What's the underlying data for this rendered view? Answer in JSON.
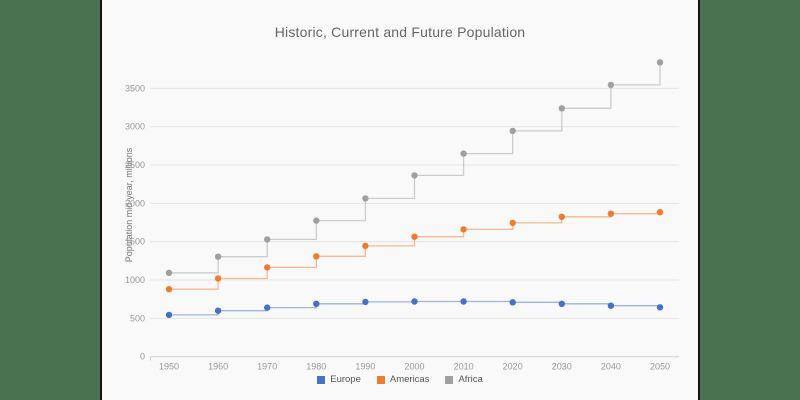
{
  "background_color": "#4a7150",
  "card_color": "#f9f9f9",
  "chart_data": {
    "type": "line",
    "subtype": "step-after",
    "title": "Historic, Current and Future Population",
    "xlabel": "",
    "ylabel": "Population mid-year, millions",
    "x": [
      1950,
      1960,
      1970,
      1980,
      1990,
      2000,
      2010,
      2020,
      2030,
      2040,
      2050
    ],
    "series": [
      {
        "name": "Europe",
        "color": "#4472c4",
        "values": [
          545,
          600,
          640,
          690,
          715,
          720,
          720,
          710,
          690,
          665,
          645
        ]
      },
      {
        "name": "Americas",
        "color": "#ed7d31",
        "values": [
          880,
          1020,
          1165,
          1310,
          1445,
          1565,
          1660,
          1745,
          1825,
          1865,
          1885
        ]
      },
      {
        "name": "Africa",
        "color": "#a0a0a0",
        "values": [
          1095,
          1305,
          1530,
          1775,
          2065,
          2365,
          2650,
          2945,
          3240,
          3545,
          3840
        ]
      }
    ],
    "yticks": [
      0,
      500,
      1000,
      1500,
      2000,
      2500,
      3000,
      3500
    ],
    "ylim": [
      0,
      3900
    ],
    "grid": true,
    "legend_position": "bottom"
  }
}
